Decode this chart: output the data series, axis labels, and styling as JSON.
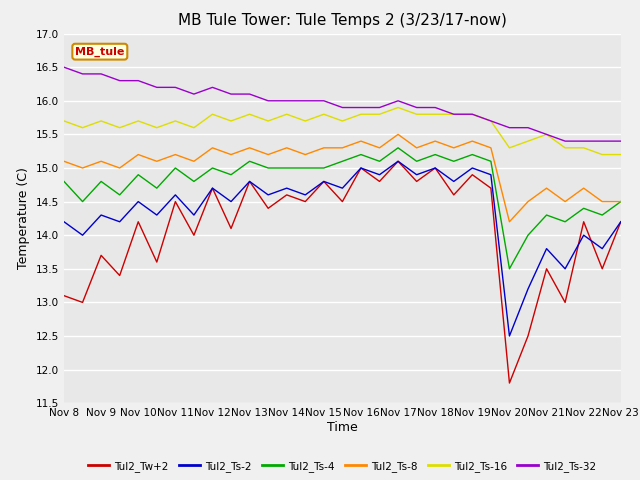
{
  "title": "MB Tule Tower: Tule Temps 2 (3/23/17-now)",
  "xlabel": "Time",
  "ylabel": "Temperature (C)",
  "ylim": [
    11.5,
    17.0
  ],
  "yticks": [
    11.5,
    12.0,
    12.5,
    13.0,
    13.5,
    14.0,
    14.5,
    15.0,
    15.5,
    16.0,
    16.5,
    17.0
  ],
  "xlim": [
    0,
    15
  ],
  "xtick_labels": [
    "Nov 8",
    "Nov 9",
    "Nov 10",
    "Nov 11",
    "Nov 12",
    "Nov 13",
    "Nov 14",
    "Nov 15",
    "Nov 16",
    "Nov 17",
    "Nov 18",
    "Nov 19",
    "Nov 20",
    "Nov 21",
    "Nov 22",
    "Nov 23"
  ],
  "legend_label": "MB_tule",
  "series": {
    "Tul2_Tw+2": {
      "color": "#cc0000",
      "data_x": [
        0,
        0.5,
        1,
        1.5,
        2,
        2.5,
        3,
        3.5,
        4,
        4.5,
        5,
        5.5,
        6,
        6.5,
        7,
        7.5,
        8,
        8.5,
        9,
        9.5,
        10,
        10.5,
        11,
        11.5,
        12,
        12.5,
        13,
        13.5,
        14,
        14.5,
        15
      ],
      "data_y": [
        13.1,
        13.0,
        13.7,
        13.4,
        14.2,
        13.6,
        14.5,
        14.0,
        14.7,
        14.1,
        14.8,
        14.4,
        14.6,
        14.5,
        14.8,
        14.5,
        15.0,
        14.8,
        15.1,
        14.8,
        15.0,
        14.6,
        14.9,
        14.7,
        11.8,
        12.5,
        13.5,
        13.0,
        14.2,
        13.5,
        14.2
      ]
    },
    "Tul2_Ts-2": {
      "color": "#0000cc",
      "data_x": [
        0,
        0.5,
        1,
        1.5,
        2,
        2.5,
        3,
        3.5,
        4,
        4.5,
        5,
        5.5,
        6,
        6.5,
        7,
        7.5,
        8,
        8.5,
        9,
        9.5,
        10,
        10.5,
        11,
        11.5,
        12,
        12.5,
        13,
        13.5,
        14,
        14.5,
        15
      ],
      "data_y": [
        14.2,
        14.0,
        14.3,
        14.2,
        14.5,
        14.3,
        14.6,
        14.3,
        14.7,
        14.5,
        14.8,
        14.6,
        14.7,
        14.6,
        14.8,
        14.7,
        15.0,
        14.9,
        15.1,
        14.9,
        15.0,
        14.8,
        15.0,
        14.9,
        12.5,
        13.2,
        13.8,
        13.5,
        14.0,
        13.8,
        14.2
      ]
    },
    "Tul2_Ts-4": {
      "color": "#00aa00",
      "data_x": [
        0,
        0.5,
        1,
        1.5,
        2,
        2.5,
        3,
        3.5,
        4,
        4.5,
        5,
        5.5,
        6,
        6.5,
        7,
        7.5,
        8,
        8.5,
        9,
        9.5,
        10,
        10.5,
        11,
        11.5,
        12,
        12.5,
        13,
        13.5,
        14,
        14.5,
        15
      ],
      "data_y": [
        14.8,
        14.5,
        14.8,
        14.6,
        14.9,
        14.7,
        15.0,
        14.8,
        15.0,
        14.9,
        15.1,
        15.0,
        15.0,
        15.0,
        15.0,
        15.1,
        15.2,
        15.1,
        15.3,
        15.1,
        15.2,
        15.1,
        15.2,
        15.1,
        13.5,
        14.0,
        14.3,
        14.2,
        14.4,
        14.3,
        14.5
      ]
    },
    "Tul2_Ts-8": {
      "color": "#ff8800",
      "data_x": [
        0,
        0.5,
        1,
        1.5,
        2,
        2.5,
        3,
        3.5,
        4,
        4.5,
        5,
        5.5,
        6,
        6.5,
        7,
        7.5,
        8,
        8.5,
        9,
        9.5,
        10,
        10.5,
        11,
        11.5,
        12,
        12.5,
        13,
        13.5,
        14,
        14.5,
        15
      ],
      "data_y": [
        15.1,
        15.0,
        15.1,
        15.0,
        15.2,
        15.1,
        15.2,
        15.1,
        15.3,
        15.2,
        15.3,
        15.2,
        15.3,
        15.2,
        15.3,
        15.3,
        15.4,
        15.3,
        15.5,
        15.3,
        15.4,
        15.3,
        15.4,
        15.3,
        14.2,
        14.5,
        14.7,
        14.5,
        14.7,
        14.5,
        14.5
      ]
    },
    "Tul2_Ts-16": {
      "color": "#dddd00",
      "data_x": [
        0,
        0.5,
        1,
        1.5,
        2,
        2.5,
        3,
        3.5,
        4,
        4.5,
        5,
        5.5,
        6,
        6.5,
        7,
        7.5,
        8,
        8.5,
        9,
        9.5,
        10,
        10.5,
        11,
        11.5,
        12,
        12.5,
        13,
        13.5,
        14,
        14.5,
        15
      ],
      "data_y": [
        15.7,
        15.6,
        15.7,
        15.6,
        15.7,
        15.6,
        15.7,
        15.6,
        15.8,
        15.7,
        15.8,
        15.7,
        15.8,
        15.7,
        15.8,
        15.7,
        15.8,
        15.8,
        15.9,
        15.8,
        15.8,
        15.8,
        15.8,
        15.7,
        15.3,
        15.4,
        15.5,
        15.3,
        15.3,
        15.2,
        15.2
      ]
    },
    "Tul2_Ts-32": {
      "color": "#9900cc",
      "data_x": [
        0,
        0.5,
        1,
        1.5,
        2,
        2.5,
        3,
        3.5,
        4,
        4.5,
        5,
        5.5,
        6,
        6.5,
        7,
        7.5,
        8,
        8.5,
        9,
        9.5,
        10,
        10.5,
        11,
        11.5,
        12,
        12.5,
        13,
        13.5,
        14,
        14.5,
        15
      ],
      "data_y": [
        16.5,
        16.4,
        16.4,
        16.3,
        16.3,
        16.2,
        16.2,
        16.1,
        16.2,
        16.1,
        16.1,
        16.0,
        16.0,
        16.0,
        16.0,
        15.9,
        15.9,
        15.9,
        16.0,
        15.9,
        15.9,
        15.8,
        15.8,
        15.7,
        15.6,
        15.6,
        15.5,
        15.4,
        15.4,
        15.4,
        15.4
      ]
    }
  },
  "background_color": "#f0f0f0",
  "plot_bg_color": "#e8e8e8",
  "grid_color": "#ffffff",
  "title_fontsize": 11,
  "axis_fontsize": 9,
  "tick_fontsize": 7.5
}
